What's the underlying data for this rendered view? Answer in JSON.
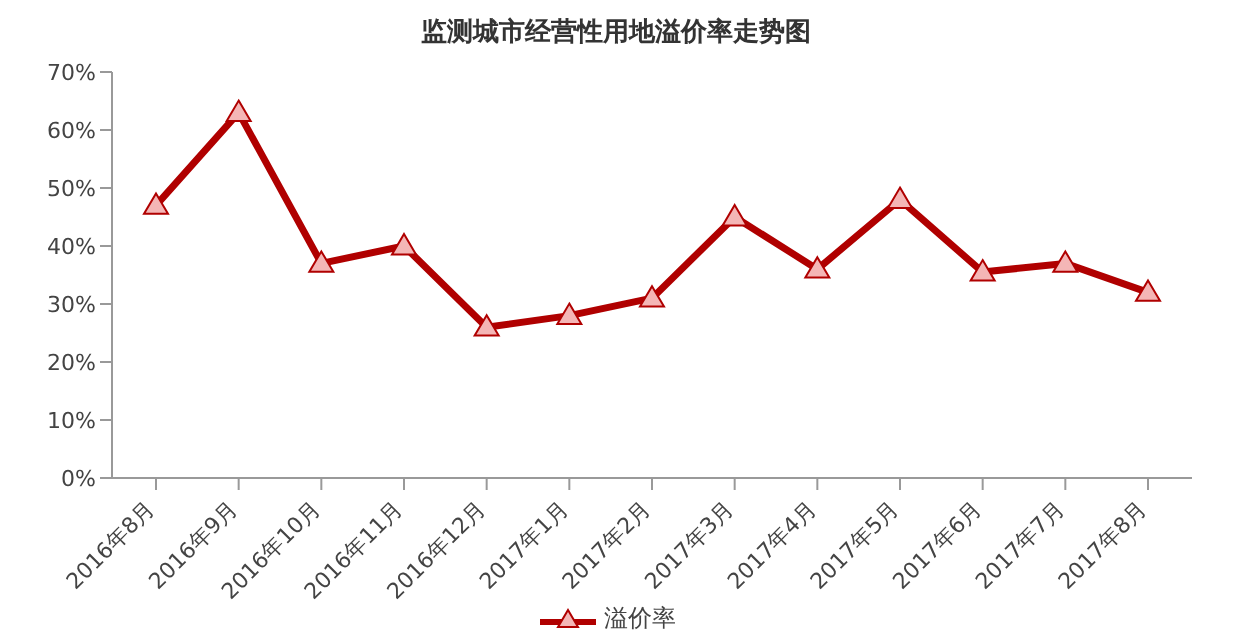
{
  "chart_data": {
    "type": "line",
    "title": "监测城市经营性用地溢价率走势图",
    "categories": [
      "2016年8月",
      "2016年9月",
      "2016年10月",
      "2016年11月",
      "2016年12月",
      "2017年1月",
      "2017年2月",
      "2017年3月",
      "2017年4月",
      "2017年5月",
      "2017年6月",
      "2017年7月",
      "2017年8月"
    ],
    "series": [
      {
        "name": "溢价率",
        "color": "#b00000",
        "values": [
          47,
          63,
          37,
          40,
          26,
          28,
          31,
          45,
          36,
          48,
          35.5,
          37,
          32
        ]
      }
    ],
    "ylim": [
      0,
      70
    ],
    "yticks": [
      {
        "value": 0,
        "label": "0%"
      },
      {
        "value": 10,
        "label": "10%"
      },
      {
        "value": 20,
        "label": "20%"
      },
      {
        "value": 30,
        "label": "30%"
      },
      {
        "value": 40,
        "label": "40%"
      },
      {
        "value": 50,
        "label": "50%"
      },
      {
        "value": 60,
        "label": "60%"
      },
      {
        "value": 70,
        "label": "70%"
      }
    ],
    "grid": false,
    "legend": "bottom",
    "marker": "triangle",
    "line_style": "solid"
  }
}
